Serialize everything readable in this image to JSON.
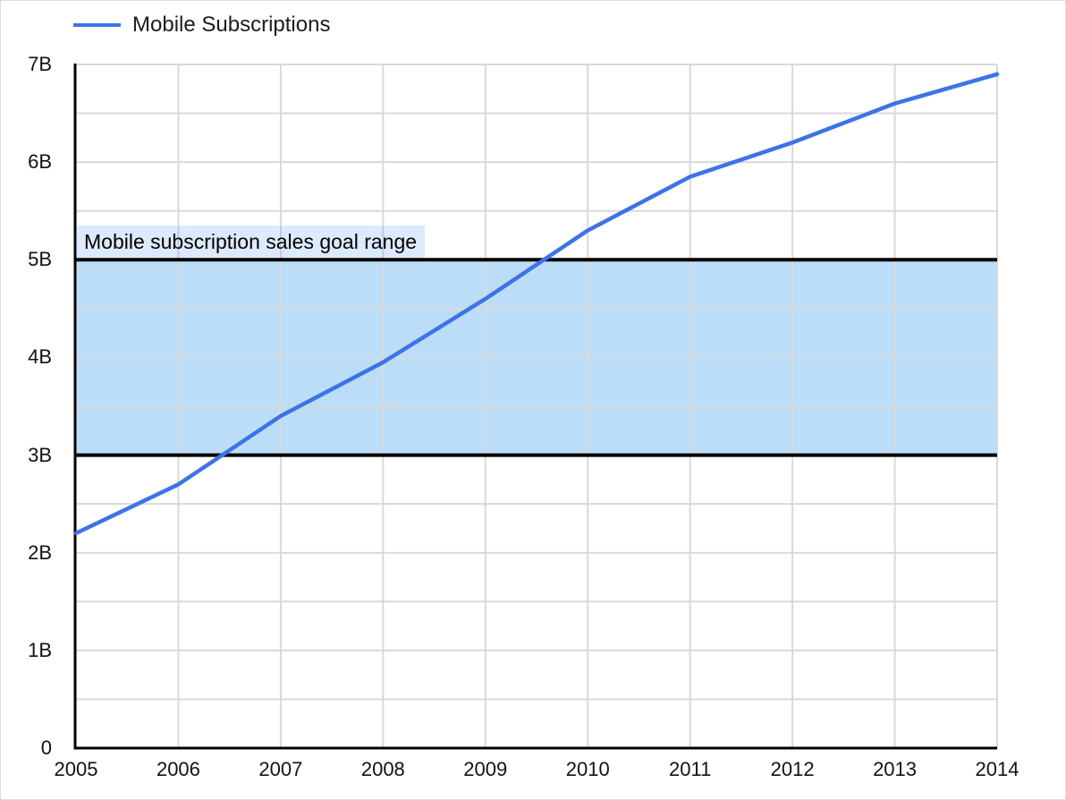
{
  "chart_data": {
    "type": "line",
    "title": "",
    "x": [
      2005,
      2006,
      2007,
      2008,
      2009,
      2010,
      2011,
      2012,
      2013,
      2014
    ],
    "x_tick_labels": [
      "2005",
      "2006",
      "2007",
      "2008",
      "2009",
      "2010",
      "2011",
      "2012",
      "2013",
      "2014"
    ],
    "series": [
      {
        "name": "Mobile Subscriptions",
        "values": [
          2.2,
          2.7,
          3.4,
          3.95,
          4.6,
          5.3,
          5.85,
          6.2,
          6.6,
          6.9
        ],
        "color": "#3c74e6",
        "line_width": 4.5
      }
    ],
    "units": "billions",
    "xlim": [
      2005,
      2014
    ],
    "ylim": [
      0,
      7
    ],
    "y_tick_labels": [
      "0",
      "1B",
      "2B",
      "3B",
      "4B",
      "5B",
      "6B",
      "7B"
    ],
    "grid": {
      "on": true,
      "y_step": 0.5,
      "color": "#d9d9d9"
    },
    "annotation_band": {
      "label": "Mobile subscription sales goal range",
      "y_from": 3,
      "y_to": 5,
      "fill": "#bcddf8",
      "border_color": "#000000"
    },
    "legend": {
      "position": "top-left",
      "entries": [
        {
          "label": "Mobile Subscriptions",
          "color": "#3c74e6"
        }
      ]
    },
    "colors": {
      "axis": "#000000",
      "tick_text": "#121212",
      "background": "#ffffff"
    }
  }
}
